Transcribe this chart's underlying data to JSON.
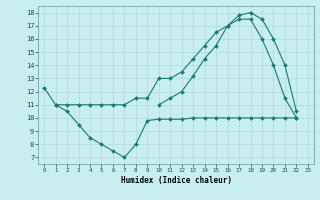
{
  "xlabel": "Humidex (Indice chaleur)",
  "bg_color": "#c8eef0",
  "grid_color": "#b0d8da",
  "line_color": "#1a7a6e",
  "xlim": [
    -0.5,
    23.5
  ],
  "ylim": [
    6.5,
    18.5
  ],
  "xticks": [
    0,
    1,
    2,
    3,
    4,
    5,
    6,
    7,
    8,
    9,
    10,
    11,
    12,
    13,
    14,
    15,
    16,
    17,
    18,
    19,
    20,
    21,
    22,
    23
  ],
  "yticks": [
    7,
    8,
    9,
    10,
    11,
    12,
    13,
    14,
    15,
    16,
    17,
    18
  ],
  "series1_x": [
    0,
    1,
    2,
    3,
    4,
    5,
    6,
    7,
    8,
    9,
    10,
    11,
    12,
    13,
    14,
    15,
    16,
    17,
    18,
    19,
    20,
    21,
    22
  ],
  "series1_y": [
    12.3,
    11.0,
    10.5,
    9.5,
    8.5,
    8.0,
    7.5,
    7.0,
    8.0,
    9.8,
    9.9,
    9.9,
    9.9,
    10.0,
    10.0,
    10.0,
    10.0,
    10.0,
    10.0,
    10.0,
    10.0,
    10.0,
    10.0
  ],
  "series2_x": [
    1,
    2,
    3,
    4,
    5,
    6,
    7,
    8,
    9,
    10,
    11,
    12,
    13,
    14,
    15,
    16,
    17,
    18,
    19,
    20,
    21,
    22
  ],
  "series2_y": [
    11.0,
    11.0,
    11.0,
    11.0,
    11.0,
    11.0,
    11.0,
    11.5,
    11.5,
    13.0,
    13.0,
    13.5,
    14.5,
    15.5,
    16.5,
    17.0,
    17.5,
    17.5,
    16.0,
    14.0,
    11.5,
    10.0
  ],
  "series3_x": [
    10,
    11,
    12,
    13,
    14,
    15,
    16,
    17,
    18,
    19,
    20,
    21,
    22
  ],
  "series3_y": [
    11.0,
    11.5,
    12.0,
    13.2,
    14.5,
    15.5,
    17.0,
    17.8,
    18.0,
    17.5,
    16.0,
    14.0,
    10.5
  ]
}
